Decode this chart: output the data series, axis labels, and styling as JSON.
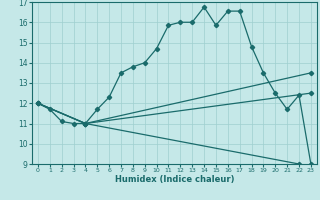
{
  "title": "",
  "xlabel": "Humidex (Indice chaleur)",
  "xlim": [
    -0.5,
    23.5
  ],
  "ylim": [
    9,
    17
  ],
  "background_color": "#c5e8e8",
  "grid_color": "#9fcfcf",
  "line_color": "#1a6b6b",
  "line1_x": [
    0,
    1,
    2,
    3,
    4,
    5,
    6,
    7,
    8,
    9,
    10,
    11,
    12,
    13,
    14,
    15,
    16,
    17,
    18,
    19,
    20,
    21,
    22,
    23
  ],
  "line1_y": [
    12.0,
    11.7,
    11.1,
    11.0,
    11.0,
    11.7,
    12.3,
    13.5,
    13.8,
    14.0,
    14.7,
    15.85,
    16.0,
    16.0,
    16.75,
    15.85,
    16.55,
    16.55,
    14.8,
    13.5,
    12.5,
    11.7,
    12.4,
    9.0
  ],
  "line2_x": [
    0,
    4,
    23
  ],
  "line2_y": [
    12.0,
    11.0,
    13.5
  ],
  "line3_x": [
    0,
    4,
    23
  ],
  "line3_y": [
    12.0,
    11.0,
    12.5
  ],
  "line4_x": [
    0,
    4,
    22,
    23
  ],
  "line4_y": [
    12.0,
    11.0,
    9.0,
    8.85
  ]
}
